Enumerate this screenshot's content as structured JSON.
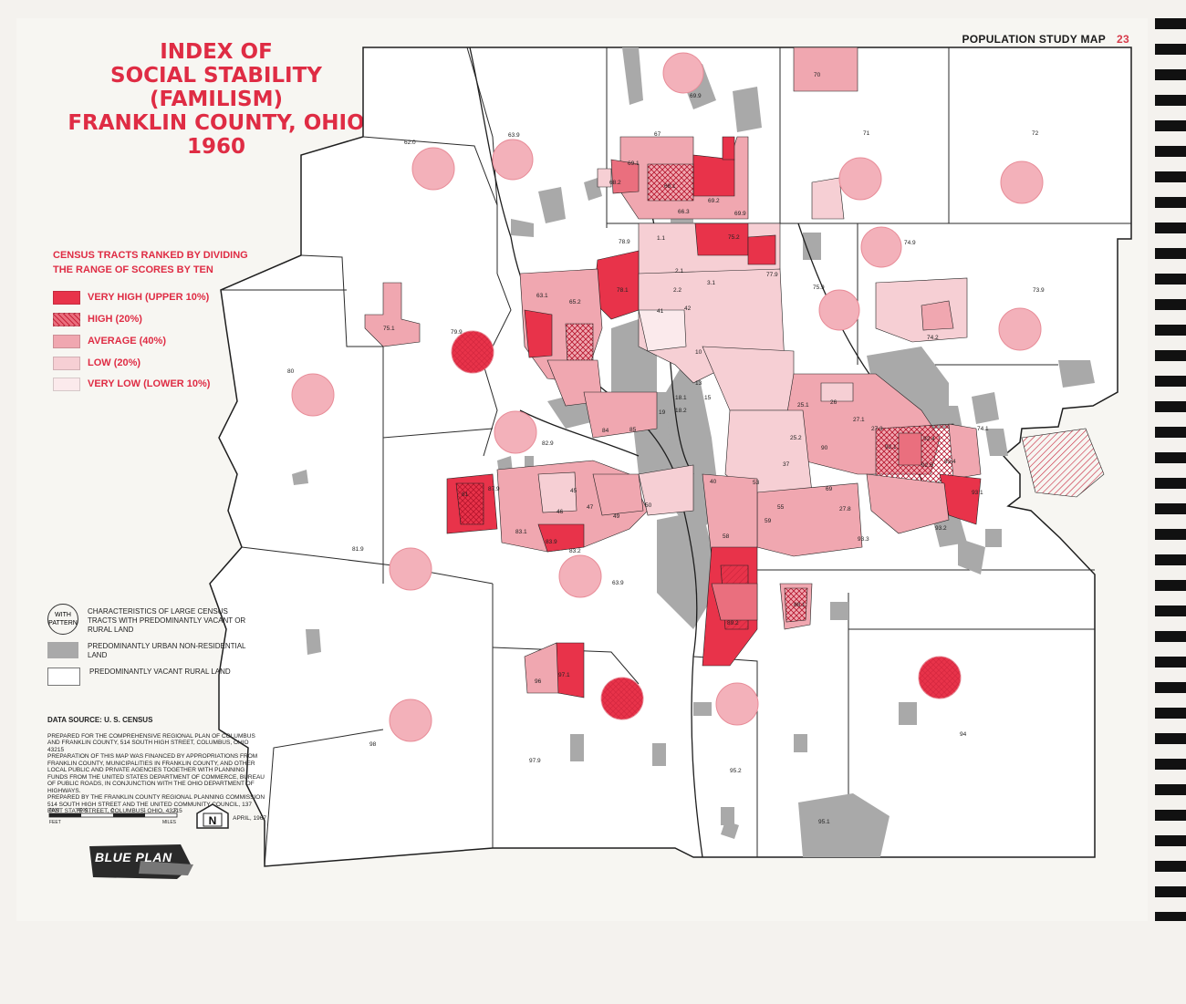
{
  "header": {
    "label": "POPULATION STUDY MAP",
    "page_number": "23"
  },
  "title": {
    "line1": "INDEX OF",
    "line2": "SOCIAL STABILITY (FAMILISM)",
    "line3": "FRANKLIN COUNTY, OHIO",
    "line4": "1960"
  },
  "legend": {
    "title_line1": "CENSUS TRACTS RANKED BY DIVIDING",
    "title_line2": "THE RANGE OF SCORES BY TEN",
    "items": [
      {
        "label": "VERY HIGH (UPPER 10%)",
        "color": "#e8334a"
      },
      {
        "label": "HIGH       (20%)",
        "color": "#ea6f7e"
      },
      {
        "label": "AVERAGE  (40%)",
        "color": "#f0a7b0"
      },
      {
        "label": "LOW        (20%)",
        "color": "#f6cfd4"
      },
      {
        "label": "VERY LOW  (LOWER 10%)",
        "color": "#fbeaec"
      }
    ]
  },
  "pattern_legend": {
    "with_pattern": "WITH PATTERN",
    "with_pattern_text": "CHARACTERISTICS OF LARGE CENSUS TRACTS WITH PREDOMINANTLY VACANT OR RURAL LAND",
    "urban_text": "PREDOMINANTLY URBAN NON-RESIDENTIAL LAND",
    "vacant_text": "PREDOMINANTLY VACANT RURAL LAND",
    "urban_color": "#a9a9a9"
  },
  "source": {
    "title": "DATA SOURCE: U. S. CENSUS",
    "p1": "PREPARED FOR THE COMPREHENSIVE REGIONAL PLAN OF COLUMBUS AND FRANKLIN COUNTY, 514 SOUTH HIGH STREET, COLUMBUS, OHIO 43215",
    "p2": "PREPARATION OF THIS MAP WAS FINANCED BY APPROPRIATIONS FROM FRANKLIN COUNTY, MUNICIPALITIES IN FRANKLIN COUNTY, AND OTHER LOCAL PUBLIC AND PRIVATE AGENCIES TOGETHER WITH PLANNING FUNDS FROM THE UNITED STATES DEPARTMENT OF COMMERCE, BUREAU OF PUBLIC ROADS, IN CONJUNCTION WITH THE OHIO DEPARTMENT OF HIGHWAYS.",
    "p3": "PREPARED BY THE FRANKLIN COUNTY REGIONAL PLANNING COMMISSION 514 SOUTH HIGH STREET AND THE UNITED COMMUNITY COUNCIL, 137 EAST STATE STREET, COLUMBUS, OHIO, 43215",
    "date": "APRIL, 1967"
  },
  "scale": {
    "labels": [
      "8000",
      "4000",
      "0",
      "1",
      "2"
    ],
    "feet": "FEET",
    "miles": "MILES"
  },
  "north": "N",
  "logo": "BLUE PLAN",
  "tracts": [
    {
      "label": "62.0"
    },
    {
      "label": "63.9"
    },
    {
      "label": "69.9"
    },
    {
      "label": "70"
    },
    {
      "label": "71"
    },
    {
      "label": "72"
    },
    {
      "label": "67"
    },
    {
      "label": "69.1"
    },
    {
      "label": "68.1"
    },
    {
      "label": "68.2"
    },
    {
      "label": "66.3"
    },
    {
      "label": "69.2"
    },
    {
      "label": "69.9"
    },
    {
      "label": "78.9"
    },
    {
      "label": "75.2"
    },
    {
      "label": "77.9"
    },
    {
      "label": "74.9"
    },
    {
      "label": "73.9"
    },
    {
      "label": "75.9"
    },
    {
      "label": "63.1"
    },
    {
      "label": "65.2"
    },
    {
      "label": "78.1"
    },
    {
      "label": "75.1"
    },
    {
      "label": "79.9"
    },
    {
      "label": "80"
    },
    {
      "label": "74.2"
    },
    {
      "label": "74.1"
    },
    {
      "label": "82.9"
    },
    {
      "label": "87.9"
    },
    {
      "label": "81"
    },
    {
      "label": "83.1"
    },
    {
      "label": "83.9"
    },
    {
      "label": "81.9"
    },
    {
      "label": "83.2"
    },
    {
      "label": "63.9"
    },
    {
      "label": "93.2"
    },
    {
      "label": "93.3"
    },
    {
      "label": "92.5"
    },
    {
      "label": "93.1"
    },
    {
      "label": "88.1"
    },
    {
      "label": "89.2"
    },
    {
      "label": "97.1"
    },
    {
      "label": "96"
    },
    {
      "label": "98"
    },
    {
      "label": "97.9"
    },
    {
      "label": "95.2"
    },
    {
      "label": "94"
    },
    {
      "label": "95.1"
    },
    {
      "label": "3.1"
    },
    {
      "label": "2.1"
    },
    {
      "label": "2.2"
    },
    {
      "label": "1.1"
    },
    {
      "label": "42"
    },
    {
      "label": "41"
    },
    {
      "label": "10"
    },
    {
      "label": "13"
    },
    {
      "label": "15"
    },
    {
      "label": "18.1"
    },
    {
      "label": "18.2"
    },
    {
      "label": "19"
    },
    {
      "label": "84"
    },
    {
      "label": "85"
    },
    {
      "label": "45"
    },
    {
      "label": "46"
    },
    {
      "label": "47"
    },
    {
      "label": "49"
    },
    {
      "label": "50"
    },
    {
      "label": "40"
    },
    {
      "label": "53"
    },
    {
      "label": "55"
    },
    {
      "label": "58"
    },
    {
      "label": "59"
    },
    {
      "label": "69"
    },
    {
      "label": "27.8"
    },
    {
      "label": "37"
    },
    {
      "label": "26"
    },
    {
      "label": "27.1"
    },
    {
      "label": "27.3"
    },
    {
      "label": "25.1"
    },
    {
      "label": "25.2"
    },
    {
      "label": "90"
    },
    {
      "label": "92.1"
    },
    {
      "label": "92.4"
    },
    {
      "label": "93.4"
    }
  ]
}
